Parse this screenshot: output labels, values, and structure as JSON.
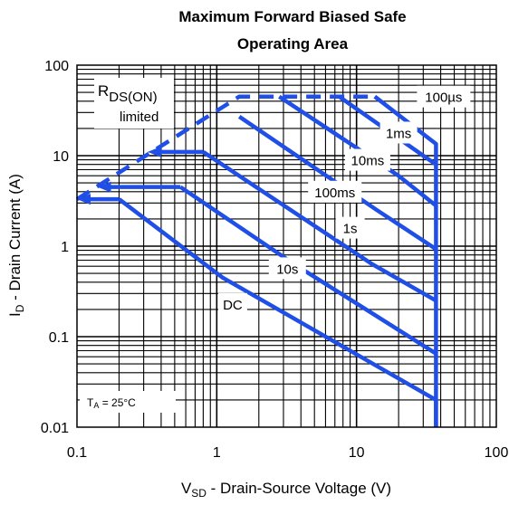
{
  "chart_data": {
    "type": "line",
    "title_line1": "Maximum Forward Biased Safe",
    "title_line2": "Operating Area",
    "xlabel": "V",
    "xlabel_sub": "SD",
    "xlabel_rest": " - Drain-Source Voltage (V)",
    "ylabel": "I",
    "ylabel_sub": "D",
    "ylabel_rest": " - Drain Current (A)",
    "x_scale": "log",
    "y_scale": "log",
    "xlim": [
      0.1,
      100
    ],
    "ylim": [
      0.01,
      100
    ],
    "x_ticks": [
      "0.1",
      "1",
      "10",
      "100"
    ],
    "y_ticks": [
      "100",
      "10",
      "1",
      "0.1",
      "0.01"
    ],
    "grid": true,
    "line_color": "#1f4fe6",
    "series": [
      {
        "name": "DC",
        "points": [
          [
            0.2,
            3.3
          ],
          [
            1.1,
            0.45
          ],
          [
            37,
            0.02
          ],
          [
            37,
            0.01
          ]
        ]
      },
      {
        "name": "10s",
        "points": [
          [
            0.55,
            4.5
          ],
          [
            3.6,
            0.63
          ],
          [
            37,
            0.065
          ]
        ]
      },
      {
        "name": "1s",
        "points": [
          [
            0.8,
            11
          ],
          [
            13,
            0.63
          ],
          [
            37,
            0.25
          ]
        ]
      },
      {
        "name": "100ms",
        "points": [
          [
            1.45,
            27
          ],
          [
            14,
            2.5
          ],
          [
            37,
            0.93
          ]
        ]
      },
      {
        "name": "10ms",
        "points": [
          [
            2.8,
            45
          ],
          [
            20,
            6
          ],
          [
            37,
            2.8
          ]
        ]
      },
      {
        "name": "1ms",
        "points": [
          [
            7.5,
            45
          ],
          [
            30,
            10
          ],
          [
            37,
            8
          ]
        ]
      },
      {
        "name": "100µs",
        "points": [
          [
            13.5,
            45
          ],
          [
            37,
            13.5
          ],
          [
            37,
            0.01
          ]
        ]
      }
    ],
    "rds_limit_line": [
      [
        0.1,
        3.3
      ],
      [
        1.45,
        45
      ],
      [
        13.5,
        45
      ]
    ],
    "arrow_lines": [
      [
        [
          0.1,
          3.3
        ],
        [
          0.2,
          3.3
        ]
      ],
      [
        [
          0.14,
          4.5
        ],
        [
          0.55,
          4.5
        ]
      ],
      [
        [
          0.32,
          11
        ],
        [
          0.8,
          11
        ]
      ]
    ],
    "annotations": {
      "rds_main": "R",
      "rds_sub": "DS(ON)",
      "rds_line2": "limited",
      "ta": "T",
      "ta_sub": "A",
      "ta_rest": " = 25°C"
    },
    "curve_labels": [
      {
        "text": "100µs",
        "at": [
          42,
          45
        ]
      },
      {
        "text": "1ms",
        "at": [
          20,
          18
        ]
      },
      {
        "text": "10ms",
        "at": [
          12,
          9
        ]
      },
      {
        "text": "100ms",
        "at": [
          7,
          4
        ]
      },
      {
        "text": "1s",
        "at": [
          9,
          1.6
        ]
      },
      {
        "text": "10s",
        "at": [
          3.2,
          0.57
        ]
      },
      {
        "text": "DC",
        "at": [
          1.3,
          0.23
        ]
      }
    ]
  }
}
